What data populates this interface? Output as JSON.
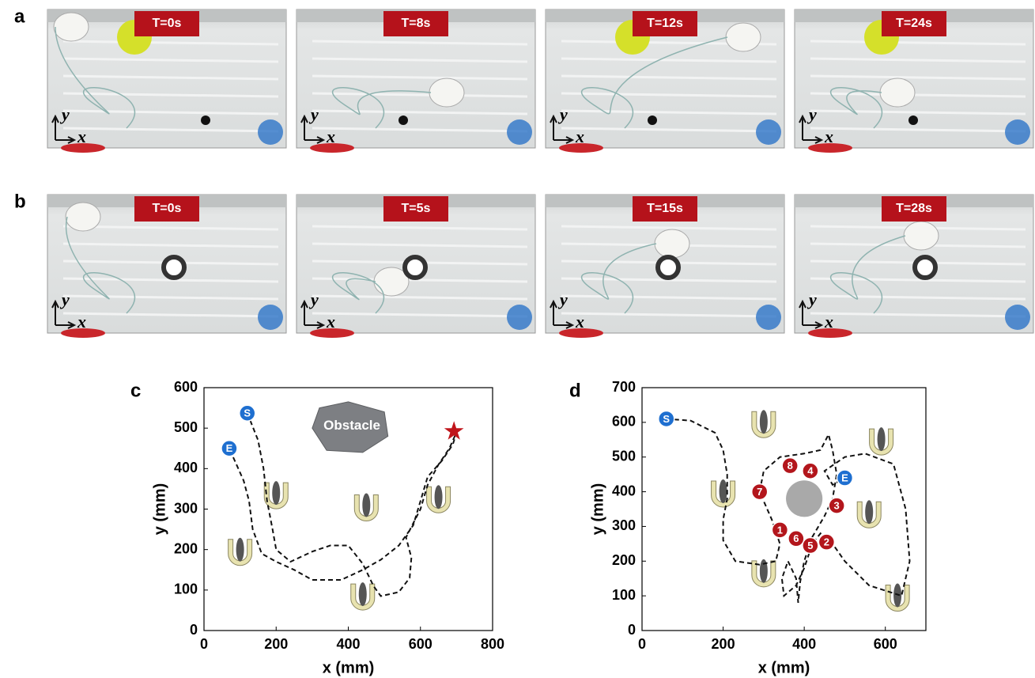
{
  "panels": [
    {
      "label": "a",
      "frames": [
        "T=0s",
        "T=8s",
        "T=12s",
        "T=24s"
      ],
      "axis_y": "y",
      "axis_x": "x"
    },
    {
      "label": "b",
      "frames": [
        "T=0s",
        "T=5s",
        "T=15s",
        "T=28s"
      ],
      "axis_y": "y",
      "axis_x": "x"
    }
  ],
  "chart_data": [
    {
      "type": "line",
      "panel_label": "c",
      "xlabel": "x (mm)",
      "ylabel": "y (mm)",
      "xlim": [
        0,
        800
      ],
      "xticks": [
        0,
        200,
        400,
        600,
        800
      ],
      "ylim": [
        0,
        600
      ],
      "yticks": [
        0,
        100,
        200,
        300,
        400,
        500,
        600
      ],
      "color": "#111111",
      "dashed": true,
      "x": [
        120,
        150,
        165,
        175,
        190,
        200,
        240,
        300,
        350,
        400,
        440,
        470,
        490,
        540,
        570,
        575,
        560,
        600,
        620,
        650,
        680,
        700,
        690,
        660,
        620,
        600,
        580,
        540,
        490,
        440,
        380,
        300,
        250,
        200,
        160,
        135,
        125,
        110,
        90,
        70
      ],
      "values": [
        537,
        470,
        400,
        320,
        250,
        200,
        170,
        195,
        210,
        210,
        165,
        110,
        85,
        95,
        130,
        180,
        230,
        300,
        360,
        410,
        450,
        490,
        460,
        420,
        380,
        320,
        260,
        210,
        175,
        150,
        125,
        125,
        150,
        170,
        190,
        250,
        320,
        370,
        410,
        450
      ],
      "annotations": [
        {
          "text": "S",
          "x": 120,
          "y": 537,
          "color": "#1e6fd0"
        },
        {
          "text": "E",
          "x": 70,
          "y": 450,
          "color": "#1e6fd0"
        }
      ],
      "goal": {
        "x": 693,
        "y": 492,
        "color": "#c0151b"
      },
      "obstacle_label": "Obstacle"
    },
    {
      "type": "line",
      "panel_label": "d",
      "xlabel": "x (mm)",
      "ylabel": "y (mm)",
      "xlim": [
        0,
        700
      ],
      "xticks": [
        0,
        200,
        400,
        600
      ],
      "ylim": [
        0,
        700
      ],
      "yticks": [
        0,
        100,
        200,
        300,
        400,
        500,
        600,
        700
      ],
      "color": "#111111",
      "dashed": true,
      "x": [
        60,
        120,
        180,
        200,
        210,
        210,
        200,
        200,
        230,
        290,
        330,
        340,
        320,
        290,
        300,
        340,
        400,
        440,
        460,
        470,
        480,
        470,
        450,
        420,
        400,
        390,
        385,
        380,
        360,
        345,
        350,
        380,
        400,
        420,
        440,
        470,
        500,
        560,
        640,
        660,
        650,
        620,
        550,
        500,
        450,
        470,
        500
      ],
      "values": [
        610,
        605,
        570,
        520,
        450,
        380,
        320,
        260,
        200,
        190,
        200,
        250,
        320,
        400,
        460,
        500,
        510,
        520,
        565,
        520,
        450,
        380,
        330,
        270,
        200,
        140,
        80,
        150,
        200,
        150,
        100,
        130,
        180,
        250,
        280,
        250,
        200,
        130,
        100,
        200,
        350,
        480,
        510,
        500,
        460,
        420,
        440
      ],
      "annotations": [
        {
          "text": "S",
          "x": 60,
          "y": 610,
          "color": "#1e6fd0"
        },
        {
          "text": "E",
          "x": 500,
          "y": 440,
          "color": "#1e6fd0"
        },
        {
          "text": "1",
          "x": 340,
          "y": 290,
          "color": "#b3161c"
        },
        {
          "text": "2",
          "x": 455,
          "y": 255,
          "color": "#b3161c"
        },
        {
          "text": "3",
          "x": 480,
          "y": 360,
          "color": "#b3161c"
        },
        {
          "text": "4",
          "x": 415,
          "y": 460,
          "color": "#b3161c"
        },
        {
          "text": "5",
          "x": 415,
          "y": 245,
          "color": "#b3161c"
        },
        {
          "text": "6",
          "x": 380,
          "y": 265,
          "color": "#b3161c"
        },
        {
          "text": "7",
          "x": 290,
          "y": 400,
          "color": "#b3161c"
        },
        {
          "text": "8",
          "x": 365,
          "y": 475,
          "color": "#b3161c"
        }
      ],
      "circle_obstacle": {
        "x": 400,
        "y": 380,
        "r": 45,
        "color": "#a9a9a9"
      }
    }
  ]
}
